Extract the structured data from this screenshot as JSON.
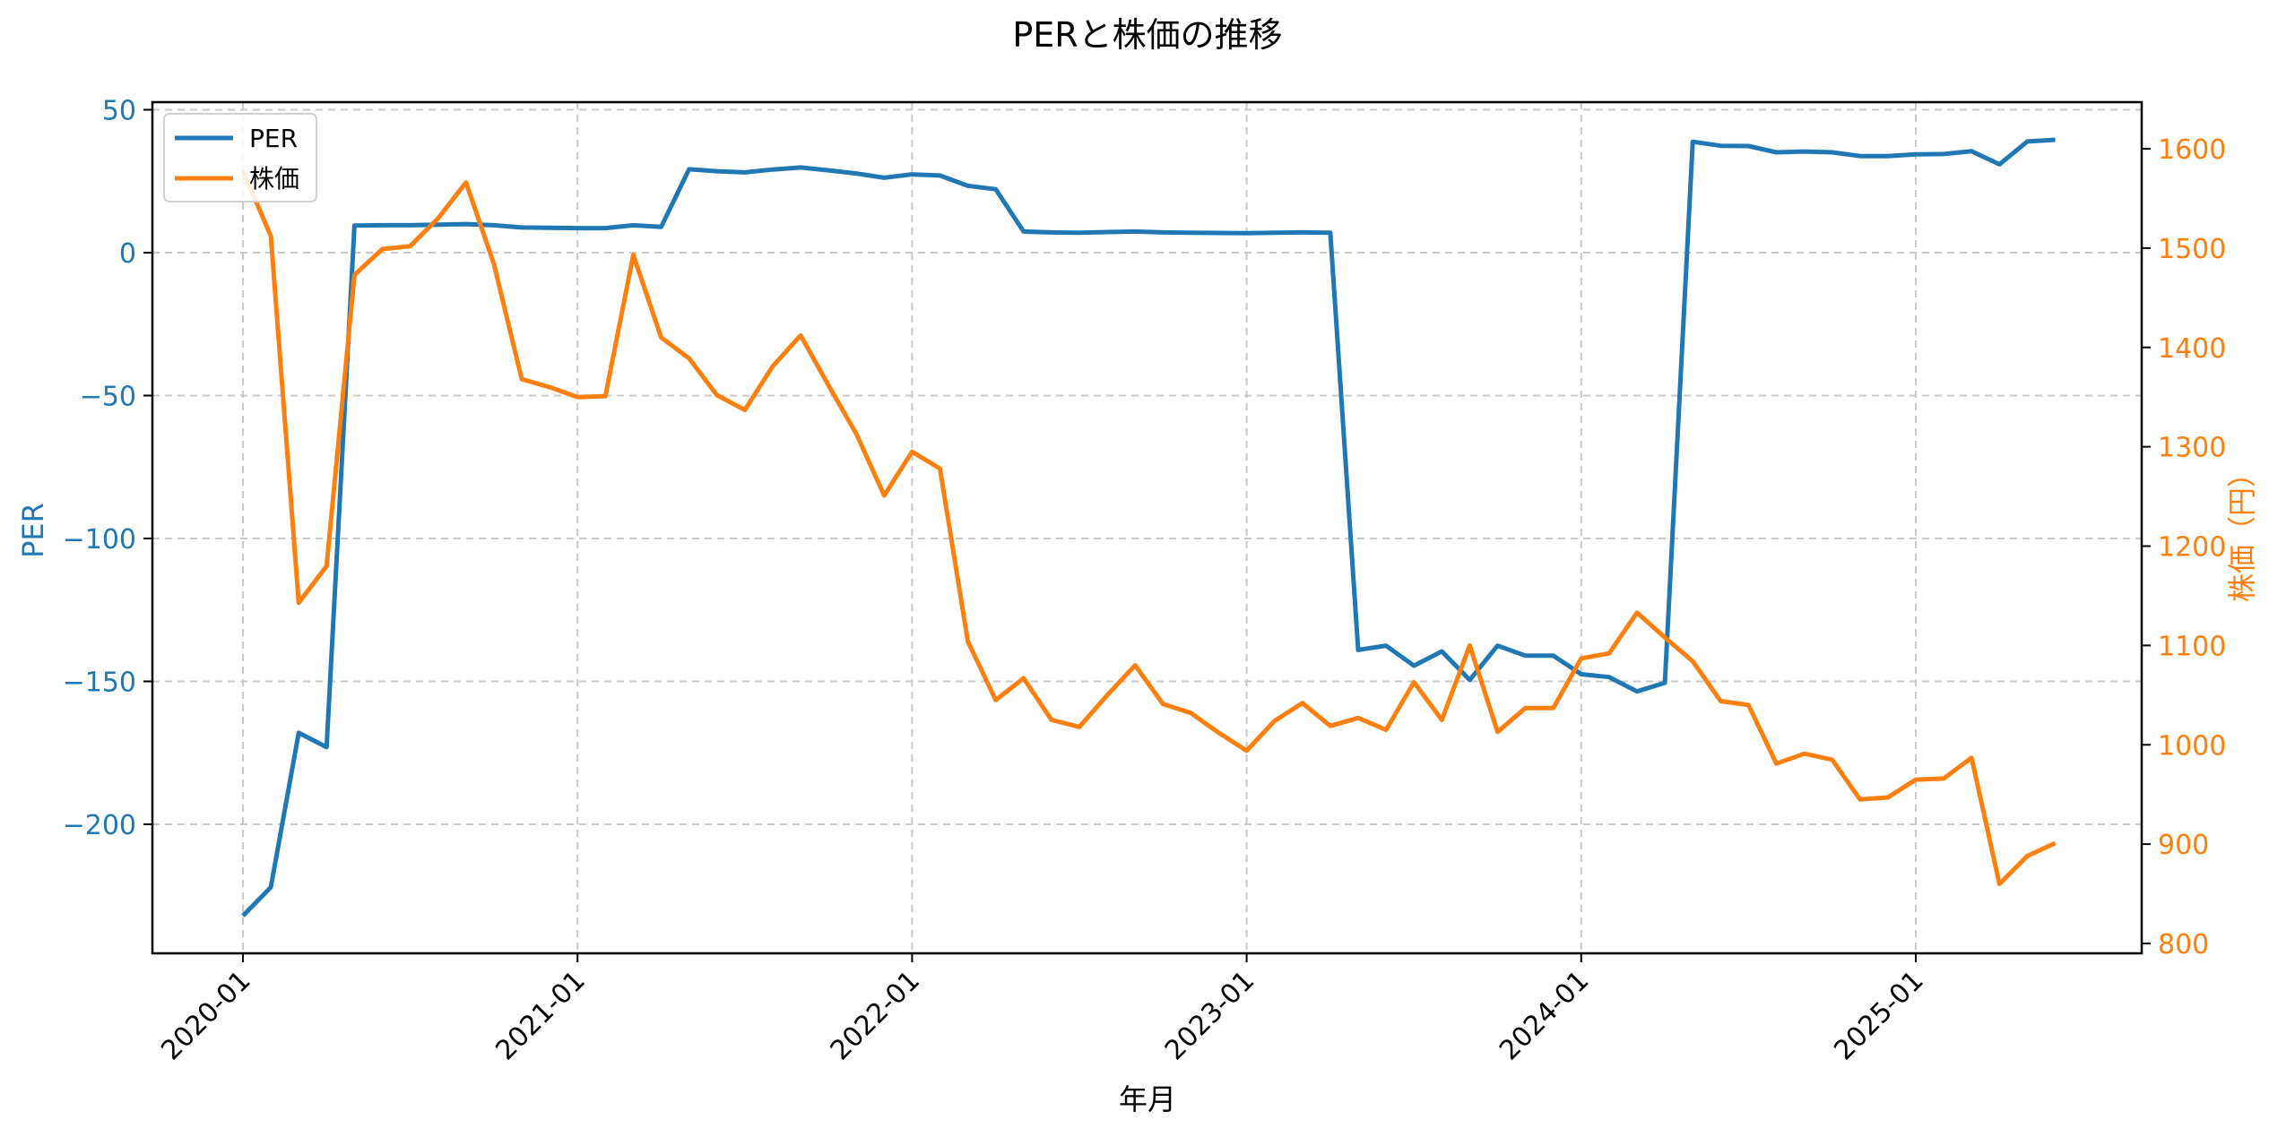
{
  "chart_data": {
    "type": "line",
    "title": "PERと株価の推移",
    "xlabel": "年月",
    "ylabel_left": "PER",
    "ylabel_right": "株価（円）",
    "ylim_left": [
      -245,
      50
    ],
    "ylim_right": [
      790,
      1640
    ],
    "yticks_left": [
      50,
      0,
      -50,
      -100,
      -150,
      -200
    ],
    "ytick_labels_left": [
      "50",
      "0",
      "−50",
      "−100",
      "−150",
      "−200"
    ],
    "yticks_right": [
      1600,
      1500,
      1400,
      1300,
      1200,
      1100,
      1000,
      900,
      800
    ],
    "xtick_labels": [
      "2020-01",
      "2021-01",
      "2022-01",
      "2023-01",
      "2024-01",
      "2025-01"
    ],
    "xtick_index": [
      0,
      12,
      24,
      36,
      48,
      60
    ],
    "grid": true,
    "legend_position": "upper left",
    "x": [
      "2020-01",
      "2020-02",
      "2020-03",
      "2020-04",
      "2020-05",
      "2020-06",
      "2020-07",
      "2020-08",
      "2020-09",
      "2020-10",
      "2020-11",
      "2020-12",
      "2021-01",
      "2021-02",
      "2021-03",
      "2021-04",
      "2021-05",
      "2021-06",
      "2021-07",
      "2021-08",
      "2021-09",
      "2021-10",
      "2021-11",
      "2021-12",
      "2022-01",
      "2022-02",
      "2022-03",
      "2022-04",
      "2022-05",
      "2022-06",
      "2022-07",
      "2022-08",
      "2022-09",
      "2022-10",
      "2022-11",
      "2022-12",
      "2023-01",
      "2023-02",
      "2023-03",
      "2023-04",
      "2023-05",
      "2023-06",
      "2023-07",
      "2023-08",
      "2023-09",
      "2023-10",
      "2023-11",
      "2023-12",
      "2024-01",
      "2024-02",
      "2024-03",
      "2024-04",
      "2024-05",
      "2024-06",
      "2024-07",
      "2024-08",
      "2024-09",
      "2024-10",
      "2024-11",
      "2024-12",
      "2025-01",
      "2025-02",
      "2025-03",
      "2025-04",
      "2025-05",
      "2025-06"
    ],
    "series": [
      {
        "name": "PER",
        "axis": "left",
        "color": "#1f77b4",
        "values": [
          -232,
          -222,
          -168,
          -173,
          9.5,
          9.6,
          9.6,
          9.8,
          10,
          9.6,
          8.8,
          8.7,
          8.6,
          8.6,
          9.6,
          9.0,
          29.2,
          28.5,
          28.1,
          29.1,
          29.8,
          28.8,
          27.7,
          26.2,
          27.4,
          27.0,
          23.4,
          22.2,
          7.4,
          7.1,
          7.0,
          7.2,
          7.4,
          7.1,
          7.0,
          6.9,
          6.8,
          7.0,
          7.1,
          7.0,
          -139,
          -137.5,
          -144.5,
          -139.5,
          -149.5,
          -137.5,
          -141,
          -141,
          -147.5,
          -148.5,
          -153.5,
          -150.5,
          38.8,
          37.4,
          37.3,
          35.1,
          35.4,
          35.1,
          33.8,
          33.8,
          34.4,
          34.5,
          35.5,
          30.9,
          38.9,
          39.5
        ]
      },
      {
        "name": "株価",
        "axis": "right",
        "color": "#ff7f0e",
        "values": [
          1578,
          1512,
          1143,
          1180,
          1473,
          1499,
          1502,
          1530,
          1566,
          1484,
          1368,
          1360,
          1350,
          1351,
          1493,
          1410,
          1389,
          1352,
          1337,
          1381,
          1412,
          1362,
          1313,
          1251,
          1295,
          1278,
          1104,
          1045,
          1067,
          1025,
          1018,
          1050,
          1080,
          1041,
          1032,
          1012,
          994,
          1024,
          1042,
          1019,
          1027,
          1015,
          1063,
          1025,
          1100,
          1013,
          1037,
          1037,
          1087,
          1092,
          1133,
          1108,
          1084,
          1044,
          1040,
          981,
          991,
          985,
          945,
          947,
          965,
          966,
          987,
          860,
          888,
          901
        ]
      }
    ]
  },
  "legend": {
    "items": [
      {
        "label": "PER",
        "color": "#1f77b4"
      },
      {
        "label": "株価",
        "color": "#ff7f0e"
      }
    ]
  }
}
